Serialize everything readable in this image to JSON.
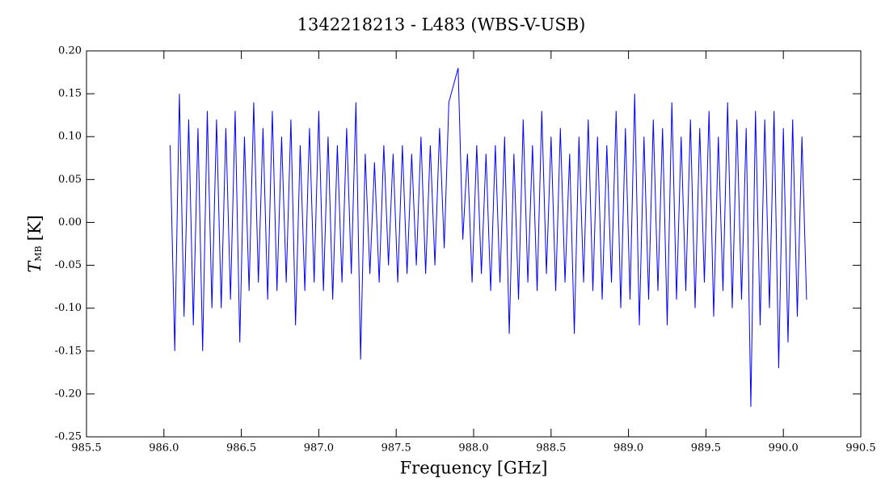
{
  "chart_data": {
    "type": "line",
    "title": "1342218213 - L483 (WBS-V-USB)",
    "xlabel": "Frequency [GHz]",
    "ylabel": {
      "symbol": "T",
      "subscript": "MB",
      "unit": "[K]"
    },
    "xlim": [
      985.5,
      990.5
    ],
    "ylim": [
      -0.25,
      0.2
    ],
    "xticks": [
      985.5,
      {
        "value": 986,
        "label": "986.0"
      },
      986.5,
      {
        "value": 987,
        "label": "987.0"
      },
      987.5,
      {
        "value": 988,
        "label": "988.0"
      },
      988.5,
      {
        "value": 989,
        "label": "989.0"
      },
      989.5,
      {
        "value": 990,
        "label": "990.0"
      },
      990.5
    ],
    "yticks": [
      {
        "value": 0.2,
        "label": "0.20"
      },
      0.15,
      {
        "value": 0.1,
        "label": "0.10"
      },
      0.05,
      {
        "value": 0,
        "label": "0.00"
      },
      -0.05,
      {
        "value": -0.1,
        "label": "-0.10"
      },
      -0.15,
      {
        "value": -0.2,
        "label": "-0.20"
      },
      -0.25
    ],
    "series": [
      {
        "color": "#0000ff",
        "x": [
          986.04,
          986.07,
          986.1,
          986.13,
          986.16,
          986.19,
          986.22,
          986.25,
          986.28,
          986.31,
          986.34,
          986.37,
          986.4,
          986.43,
          986.46,
          986.49,
          986.52,
          986.55,
          986.58,
          986.61,
          986.64,
          986.67,
          986.7,
          986.73,
          986.76,
          986.79,
          986.82,
          986.85,
          986.88,
          986.91,
          986.94,
          986.97,
          987.0,
          987.03,
          987.06,
          987.09,
          987.12,
          987.15,
          987.18,
          987.21,
          987.24,
          987.27,
          987.3,
          987.33,
          987.36,
          987.39,
          987.42,
          987.45,
          987.48,
          987.51,
          987.54,
          987.57,
          987.6,
          987.63,
          987.66,
          987.69,
          987.72,
          987.75,
          987.78,
          987.81,
          987.84,
          987.87,
          987.9,
          987.93,
          987.96,
          987.99,
          988.02,
          988.05,
          988.08,
          988.11,
          988.14,
          988.17,
          988.2,
          988.23,
          988.26,
          988.29,
          988.32,
          988.35,
          988.38,
          988.41,
          988.44,
          988.47,
          988.5,
          988.53,
          988.56,
          988.59,
          988.62,
          988.65,
          988.68,
          988.71,
          988.74,
          988.77,
          988.8,
          988.83,
          988.86,
          988.89,
          988.92,
          988.95,
          988.98,
          989.01,
          989.04,
          989.07,
          989.1,
          989.13,
          989.16,
          989.19,
          989.22,
          989.25,
          989.28,
          989.31,
          989.34,
          989.37,
          989.4,
          989.43,
          989.46,
          989.49,
          989.52,
          989.55,
          989.58,
          989.61,
          989.64,
          989.67,
          989.7,
          989.73,
          989.76,
          989.79,
          989.82,
          989.85,
          989.88,
          989.91,
          989.94,
          989.97,
          990.0,
          990.03,
          990.06,
          990.09,
          990.12,
          990.15
        ],
        "values": [
          0.09,
          -0.15,
          0.15,
          -0.11,
          0.12,
          -0.12,
          0.11,
          -0.15,
          0.13,
          -0.1,
          0.12,
          -0.1,
          0.11,
          -0.09,
          0.13,
          -0.14,
          0.1,
          -0.08,
          0.14,
          -0.07,
          0.11,
          -0.09,
          0.13,
          -0.08,
          0.1,
          -0.07,
          0.12,
          -0.12,
          0.09,
          -0.08,
          0.11,
          -0.07,
          0.13,
          -0.08,
          0.1,
          -0.09,
          0.09,
          -0.07,
          0.11,
          -0.06,
          0.14,
          -0.16,
          0.08,
          -0.06,
          0.07,
          -0.07,
          0.09,
          -0.05,
          0.08,
          -0.07,
          0.09,
          -0.06,
          0.08,
          -0.05,
          0.1,
          -0.06,
          0.09,
          -0.05,
          0.11,
          -0.03,
          0.14,
          0.16,
          0.18,
          -0.02,
          0.08,
          -0.07,
          0.09,
          -0.06,
          0.08,
          -0.08,
          0.09,
          -0.07,
          0.1,
          -0.13,
          0.08,
          -0.09,
          0.12,
          -0.07,
          0.09,
          -0.08,
          0.13,
          -0.06,
          0.1,
          -0.08,
          0.11,
          -0.07,
          0.08,
          -0.13,
          0.1,
          -0.07,
          0.12,
          -0.08,
          0.1,
          -0.09,
          0.09,
          -0.07,
          0.13,
          -0.1,
          0.11,
          -0.09,
          0.15,
          -0.12,
          0.1,
          -0.09,
          0.12,
          -0.08,
          0.11,
          -0.12,
          0.14,
          -0.09,
          0.1,
          -0.08,
          0.12,
          -0.1,
          0.11,
          -0.07,
          0.13,
          -0.11,
          0.1,
          -0.08,
          0.14,
          -0.1,
          0.12,
          -0.09,
          0.11,
          -0.215,
          0.13,
          -0.12,
          0.12,
          -0.1,
          0.13,
          -0.17,
          0.11,
          -0.14,
          0.12,
          -0.11,
          0.1,
          -0.09
        ]
      }
    ]
  }
}
